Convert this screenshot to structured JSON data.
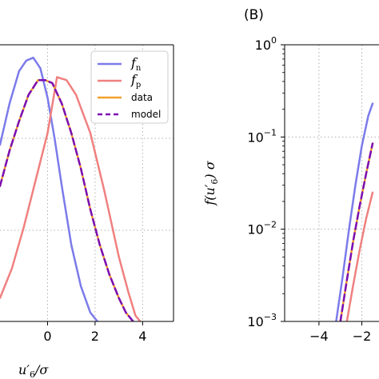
{
  "chart_data": [
    {
      "type": "line",
      "panel_label": "",
      "xlabel": "u′6/σ",
      "ylabel": "",
      "xlim": [
        -2.0,
        5.3
      ],
      "ylim": [
        0.0,
        0.47
      ],
      "xticks": [
        0,
        2,
        4
      ],
      "xtick_labels": [
        "0",
        "2",
        "4"
      ],
      "grid": true,
      "legend_position": "top-right",
      "legend": [
        {
          "label": "f",
          "sub": "n",
          "color": "#7b7bea",
          "dashed": false
        },
        {
          "label": "f",
          "sub": "p",
          "color": "#f08080",
          "dashed": false
        },
        {
          "label": "data",
          "sub": "",
          "color": "#f2a02b",
          "dashed": false
        },
        {
          "label": "model",
          "sub": "",
          "color": "#7a0fb5",
          "dashed": true
        }
      ],
      "series": [
        {
          "name": "f",
          "color": "#7b7bea",
          "width": 2.5,
          "dashed": false,
          "x": [
            -2.0,
            -1.6,
            -1.2,
            -0.9,
            -0.6,
            -0.3,
            0.0,
            0.3,
            0.6,
            1.0,
            1.4,
            1.8,
            2.1
          ],
          "y": [
            0.3,
            0.37,
            0.425,
            0.443,
            0.448,
            0.43,
            0.38,
            0.31,
            0.23,
            0.13,
            0.06,
            0.015,
            0.0
          ]
        },
        {
          "name": "f",
          "color": "#f08080",
          "width": 2.5,
          "dashed": false,
          "x": [
            -2.0,
            -1.5,
            -1.0,
            -0.5,
            0.0,
            0.4,
            0.8,
            1.2,
            1.8,
            2.4,
            3.0,
            3.4,
            3.7,
            3.9
          ],
          "y": [
            0.04,
            0.09,
            0.16,
            0.24,
            0.32,
            0.415,
            0.41,
            0.385,
            0.32,
            0.22,
            0.11,
            0.05,
            0.01,
            0.0
          ]
        },
        {
          "name": "data",
          "color": "#f2a02b",
          "width": 2.5,
          "dashed": false,
          "x": [
            -2.0,
            -1.6,
            -1.2,
            -0.8,
            -0.4,
            -0.1,
            0.2,
            0.6,
            1.0,
            1.4,
            1.8,
            2.2,
            2.6,
            3.0,
            3.3,
            3.6
          ],
          "y": [
            0.23,
            0.29,
            0.34,
            0.385,
            0.41,
            0.41,
            0.405,
            0.37,
            0.32,
            0.26,
            0.19,
            0.13,
            0.08,
            0.04,
            0.015,
            0.0
          ]
        },
        {
          "name": "model",
          "color": "#7a0fb5",
          "width": 2.5,
          "dashed": true,
          "x": [
            -2.0,
            -1.6,
            -1.2,
            -0.8,
            -0.4,
            -0.1,
            0.2,
            0.6,
            1.0,
            1.4,
            1.8,
            2.2,
            2.6,
            3.0,
            3.3,
            3.6
          ],
          "y": [
            0.23,
            0.29,
            0.34,
            0.385,
            0.41,
            0.41,
            0.405,
            0.37,
            0.32,
            0.26,
            0.19,
            0.13,
            0.08,
            0.04,
            0.015,
            0.0
          ]
        }
      ]
    },
    {
      "type": "line",
      "panel_label": "(B)",
      "xlabel": "",
      "ylabel": "f(u′6) σ",
      "xlim": [
        -5.6,
        -1.2
      ],
      "ylim": [
        0.001,
        1.0
      ],
      "yscale": "log",
      "xticks": [
        -4,
        -2
      ],
      "xtick_labels": [
        "−4",
        "−2"
      ],
      "yticks": [
        1.0,
        0.1,
        0.01,
        0.001
      ],
      "ytick_labels": [
        [
          "10",
          "0"
        ],
        [
          "10",
          "−1"
        ],
        [
          "10",
          "−2"
        ],
        [
          "10",
          "−3"
        ]
      ],
      "grid": true,
      "series": [
        {
          "name": "f",
          "color": "#7b7bea",
          "width": 2.5,
          "dashed": false,
          "x": [
            -3.2,
            -2.9,
            -2.6,
            -2.3,
            -2.0,
            -1.7,
            -1.5
          ],
          "y": [
            0.001,
            0.003,
            0.01,
            0.03,
            0.08,
            0.17,
            0.23
          ]
        },
        {
          "name": "f",
          "color": "#f08080",
          "width": 2.5,
          "dashed": false,
          "x": [
            -2.7,
            -2.4,
            -2.1,
            -1.8,
            -1.5
          ],
          "y": [
            0.001,
            0.0025,
            0.006,
            0.013,
            0.025
          ]
        },
        {
          "name": "data",
          "color": "#f2a02b",
          "width": 2.5,
          "dashed": false,
          "x": [
            -3.0,
            -2.7,
            -2.4,
            -2.1,
            -1.8,
            -1.5
          ],
          "y": [
            0.001,
            0.0028,
            0.0075,
            0.018,
            0.04,
            0.085
          ]
        },
        {
          "name": "model",
          "color": "#7a0fb5",
          "width": 2.5,
          "dashed": true,
          "x": [
            -3.0,
            -2.7,
            -2.4,
            -2.1,
            -1.8,
            -1.5
          ],
          "y": [
            0.001,
            0.0028,
            0.0075,
            0.018,
            0.04,
            0.085
          ]
        }
      ]
    }
  ]
}
